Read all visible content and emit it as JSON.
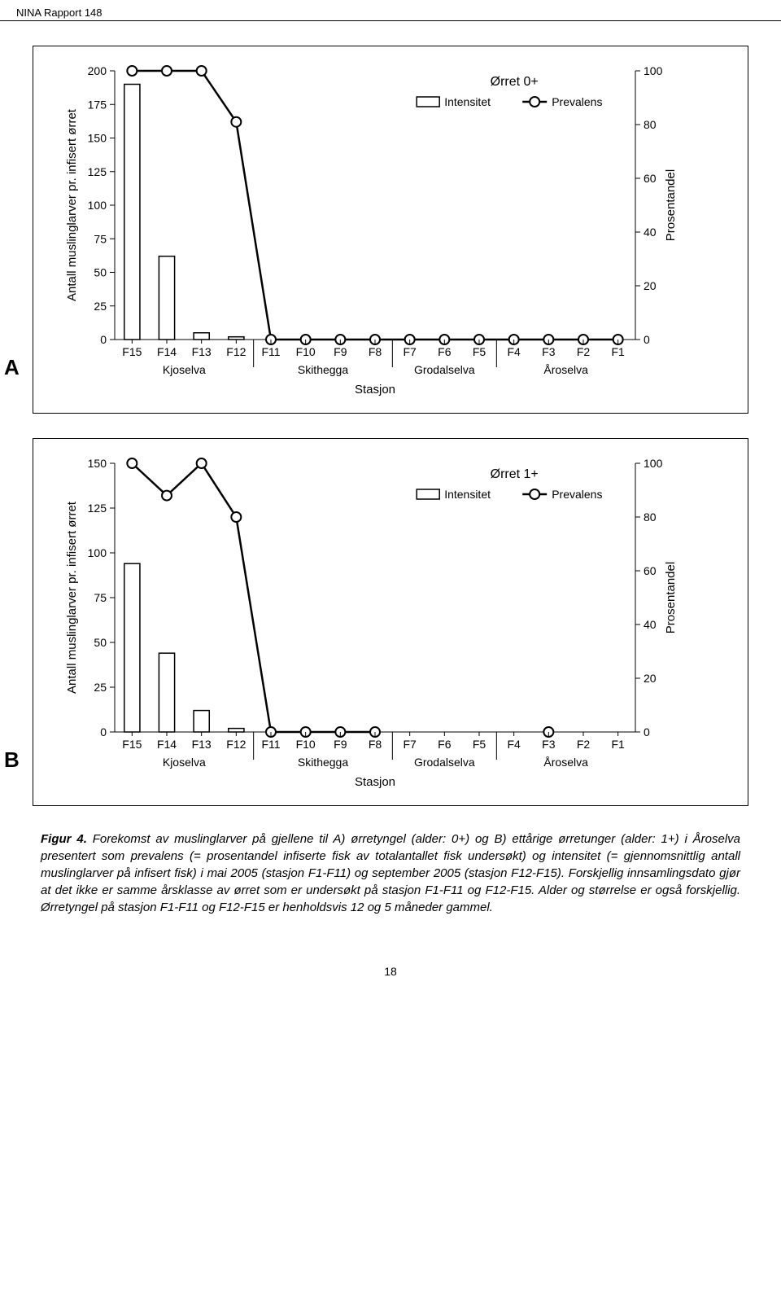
{
  "header": {
    "report_label": "NINA Rapport 148"
  },
  "page_number": "18",
  "panels": {
    "A": {
      "letter": "A",
      "title": "Ørret 0+",
      "legend": {
        "intensity": "Intensitet",
        "prevalence": "Prevalens"
      },
      "y_left": {
        "label": "Antall muslinglarver pr. infisert ørret",
        "min": 0,
        "max": 200,
        "step": 25
      },
      "y_right": {
        "label": "Prosentandel",
        "min": 0,
        "max": 100,
        "step": 20
      },
      "x_axis_title": "Stasjon",
      "categories": [
        "F15",
        "F14",
        "F13",
        "F12",
        "F11",
        "F10",
        "F9",
        "F8",
        "F7",
        "F6",
        "F5",
        "F4",
        "F3",
        "F2",
        "F1"
      ],
      "intensity": [
        190,
        62,
        5,
        2,
        0,
        0,
        0,
        0,
        0,
        0,
        0,
        0,
        0,
        0,
        0
      ],
      "prevalence": [
        100,
        100,
        100,
        81,
        0,
        0,
        0,
        0,
        0,
        0,
        0,
        0,
        0,
        0,
        0
      ],
      "groups": [
        {
          "label": "Kjoselva",
          "from": 0,
          "to": 3
        },
        {
          "label": "Skithegga",
          "from": 4,
          "to": 7
        },
        {
          "label": "Grodalselva",
          "from": 8,
          "to": 10
        },
        {
          "label": "Åroselva",
          "from": 11,
          "to": 14
        }
      ],
      "colors": {
        "bar_fill": "#ffffff",
        "stroke": "#000000",
        "bg": "#ffffff"
      },
      "bar_width": 0.45,
      "marker_radius": 6
    },
    "B": {
      "letter": "B",
      "title": "Ørret 1+",
      "legend": {
        "intensity": "Intensitet",
        "prevalence": "Prevalens"
      },
      "y_left": {
        "label": "Antall muslinglarver pr. infisert ørret",
        "min": 0,
        "max": 150,
        "step": 25
      },
      "y_right": {
        "label": "Prosentandel",
        "min": 0,
        "max": 100,
        "step": 20
      },
      "x_axis_title": "Stasjon",
      "categories": [
        "F15",
        "F14",
        "F13",
        "F12",
        "F11",
        "F10",
        "F9",
        "F8",
        "F7",
        "F6",
        "F5",
        "F4",
        "F3",
        "F2",
        "F1"
      ],
      "intensity": [
        94,
        44,
        12,
        2,
        0,
        0,
        0,
        0,
        null,
        null,
        null,
        null,
        0,
        null,
        null
      ],
      "prevalence": [
        100,
        88,
        100,
        80,
        0,
        0,
        0,
        0,
        null,
        null,
        null,
        null,
        0,
        null,
        null
      ],
      "groups": [
        {
          "label": "Kjoselva",
          "from": 0,
          "to": 3
        },
        {
          "label": "Skithegga",
          "from": 4,
          "to": 7
        },
        {
          "label": "Grodalselva",
          "from": 8,
          "to": 10
        },
        {
          "label": "Åroselva",
          "from": 11,
          "to": 14
        }
      ],
      "colors": {
        "bar_fill": "#ffffff",
        "stroke": "#000000",
        "bg": "#ffffff"
      },
      "bar_width": 0.45,
      "marker_radius": 6
    }
  },
  "caption": {
    "label": "Figur 4.",
    "text": "Forekomst av muslinglarver på gjellene til A) ørretyngel (alder: 0+) og B) ettårige ørretunger (alder: 1+) i Åroselva presentert som prevalens (= prosentandel infiserte fisk av totalantallet fisk undersøkt) og intensitet (= gjennomsnittlig antall muslinglarver på infisert fisk) i mai 2005 (stasjon F1-F11) og september 2005 (stasjon F12-F15). Forskjellig innsamlingsdato gjør at det ikke er samme årsklasse av ørret som er undersøkt på stasjon F1-F11 og F12-F15. Alder og størrelse er også forskjellig. Ørretyngel på stasjon F1-F11 og F12-F15 er henholdsvis 12 og 5 måneder gammel."
  }
}
